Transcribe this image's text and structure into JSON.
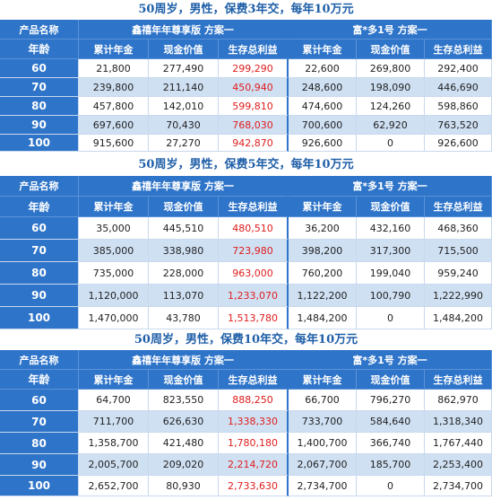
{
  "tables": [
    {
      "title": "50周岁，男性，保费3年交，每年10万元",
      "product_label": "产品名称",
      "age_label": "年龄",
      "plan_a": "鑫禧年年尊享版 方案一",
      "plan_b": "富*多1号 方案一",
      "cols_a": [
        "累计年金",
        "现金价值",
        "生存总利益"
      ],
      "cols_b": [
        "累计年金",
        "现金价值",
        "生存总利益"
      ],
      "rows": [
        {
          "age": "60",
          "a1": "21,800",
          "a2": "277,490",
          "a3": "299,290",
          "b1": "22,600",
          "b2": "269,800",
          "b3": "292,400"
        },
        {
          "age": "70",
          "a1": "239,800",
          "a2": "211,140",
          "a3": "450,940",
          "b1": "248,600",
          "b2": "198,090",
          "b3": "446,690"
        },
        {
          "age": "80",
          "a1": "457,800",
          "a2": "142,010",
          "a3": "599,810",
          "b1": "474,600",
          "b2": "124,260",
          "b3": "598,860"
        },
        {
          "age": "90",
          "a1": "697,600",
          "a2": "70,430",
          "a3": "768,030",
          "b1": "700,600",
          "b2": "62,920",
          "b3": "763,520"
        },
        {
          "age": "100",
          "a1": "915,600",
          "a2": "27,270",
          "a3": "942,870",
          "b1": "926,600",
          "b2": "0",
          "b3": "926,600"
        }
      ]
    },
    {
      "title": "50周岁，男性，保费5年交，每年10万元",
      "product_label": "产品名称",
      "age_label": "年龄",
      "plan_a": "鑫禧年年尊享版 方案一",
      "plan_b": "富*多1号 方案一",
      "cols_a": [
        "累计年金",
        "现金价值",
        "生存总利益"
      ],
      "cols_b": [
        "累计年金",
        "现金价值",
        "生存总利益"
      ],
      "rows": [
        {
          "age": "60",
          "a1": "35,000",
          "a2": "445,510",
          "a3": "480,510",
          "b1": "36,200",
          "b2": "432,160",
          "b3": "468,360"
        },
        {
          "age": "70",
          "a1": "385,000",
          "a2": "338,980",
          "a3": "723,980",
          "b1": "398,200",
          "b2": "317,300",
          "b3": "715,500"
        },
        {
          "age": "80",
          "a1": "735,000",
          "a2": "228,000",
          "a3": "963,000",
          "b1": "760,200",
          "b2": "199,040",
          "b3": "959,240"
        },
        {
          "age": "90",
          "a1": "1,120,000",
          "a2": "113,070",
          "a3": "1,233,070",
          "b1": "1,122,200",
          "b2": "100,790",
          "b3": "1,222,990"
        },
        {
          "age": "100",
          "a1": "1,470,000",
          "a2": "43,780",
          "a3": "1,513,780",
          "b1": "1,484,200",
          "b2": "0",
          "b3": "1,484,200"
        }
      ]
    },
    {
      "title": "50周岁，男性，保费10年交，每年10万元",
      "product_label": "产品名称",
      "age_label": "年龄",
      "plan_a": "鑫禧年年尊享版 方案一",
      "plan_b": "富*多1号 方案一",
      "cols_a": [
        "累计年金",
        "现金价值",
        "生存总利益"
      ],
      "cols_b": [
        "累计年金",
        "现金价值",
        "生存总利益"
      ],
      "rows": [
        {
          "age": "60",
          "a1": "64,700",
          "a2": "823,550",
          "a3": "888,250",
          "b1": "66,700",
          "b2": "796,270",
          "b3": "862,970"
        },
        {
          "age": "70",
          "a1": "711,700",
          "a2": "626,630",
          "a3": "1,338,330",
          "b1": "733,700",
          "b2": "584,640",
          "b3": "1,318,340"
        },
        {
          "age": "80",
          "a1": "1,358,700",
          "a2": "421,480",
          "a3": "1,780,180",
          "b1": "1,400,700",
          "b2": "366,740",
          "b3": "1,767,440"
        },
        {
          "age": "90",
          "a1": "2,005,700",
          "a2": "209,020",
          "a3": "2,214,720",
          "b1": "2,067,700",
          "b2": "185,700",
          "b3": "2,253,400"
        },
        {
          "age": "100",
          "a1": "2,652,700",
          "a2": "80,930",
          "a3": "2,733,630",
          "b1": "2,734,700",
          "b2": "0",
          "b3": "2,734,700"
        }
      ]
    }
  ],
  "colors": {
    "header_blue": "#2e74c9",
    "stripe": "#cfe0f3",
    "title": "#1f5fa8",
    "highlight_red": "#e01c1c"
  }
}
